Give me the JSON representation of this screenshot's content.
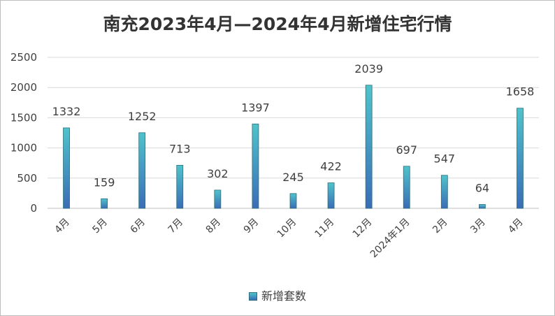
{
  "chart_data": {
    "type": "bar",
    "title": "南充2023年4月—2024年4月新增住宅行情",
    "categories": [
      "4月",
      "5月",
      "6月",
      "7月",
      "8月",
      "9月",
      "10月",
      "11月",
      "12月",
      "2024年1月",
      "2月",
      "3月",
      "4月"
    ],
    "series": [
      {
        "name": "新增套数",
        "values": [
          1332,
          159,
          1252,
          713,
          302,
          1397,
          245,
          422,
          2039,
          697,
          547,
          64,
          1658
        ]
      }
    ],
    "ylim": [
      0,
      2500
    ],
    "yticks": [
      0,
      500,
      1000,
      1500,
      2000,
      2500
    ],
    "grid": true,
    "legend_position": "bottom",
    "colors": {
      "bar_top": "#4fc3cb",
      "bar_bottom": "#3a6db6",
      "bar_edge": "#2a6f7d",
      "grid": "#d9d9d9",
      "axis": "#bfbfbf",
      "text": "#404040"
    }
  }
}
